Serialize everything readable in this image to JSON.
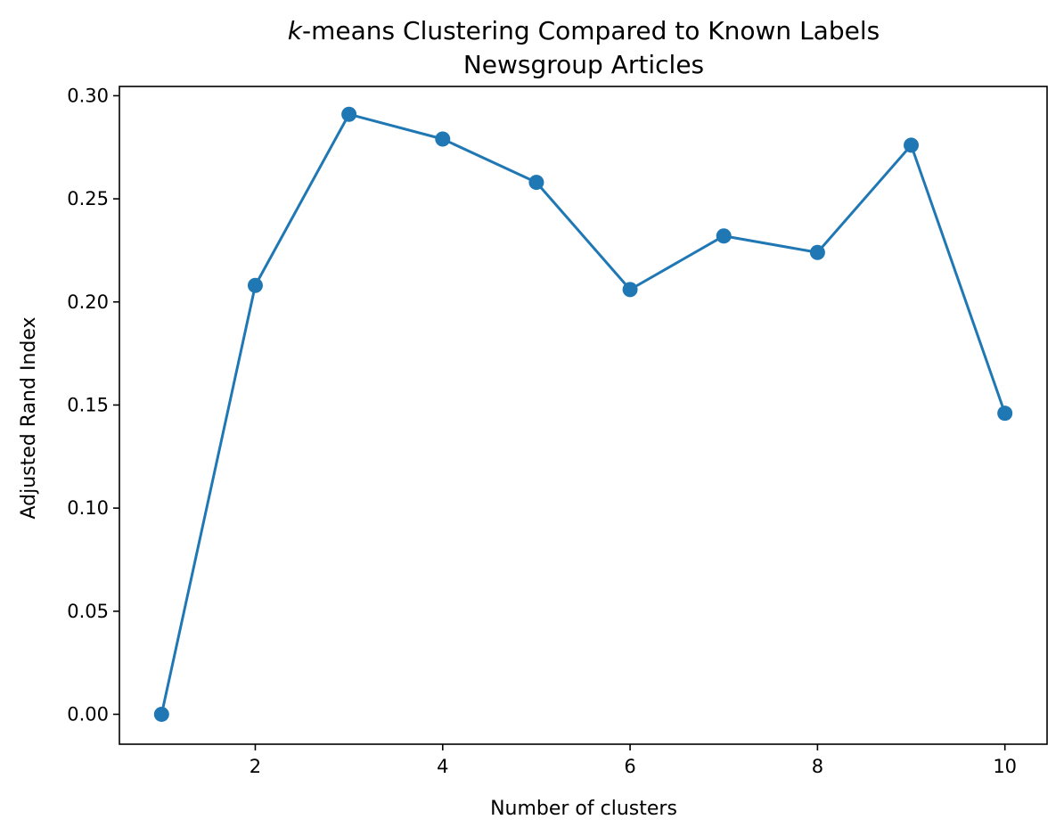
{
  "chart_data": {
    "type": "line",
    "title_italic_part": "k",
    "title_rest": "-means Clustering Compared to Known Labels",
    "subtitle": "Newsgroup Articles",
    "xlabel": "Number of clusters",
    "ylabel": "Adjusted Rand Index",
    "xlim": [
      0.55,
      10.45
    ],
    "ylim": [
      -0.0145,
      0.3045
    ],
    "x_ticks": [
      2,
      4,
      6,
      8,
      10
    ],
    "x_tick_labels": [
      "2",
      "4",
      "6",
      "8",
      "10"
    ],
    "y_ticks": [
      0.0,
      0.05,
      0.1,
      0.15,
      0.2,
      0.25,
      0.3
    ],
    "y_tick_labels": [
      "0.00",
      "0.05",
      "0.10",
      "0.15",
      "0.20",
      "0.25",
      "0.30"
    ],
    "grid": false,
    "series": [
      {
        "color": "#1f77b4",
        "marker": "circle",
        "x": [
          1,
          2,
          3,
          4,
          5,
          6,
          7,
          8,
          9,
          10
        ],
        "y": [
          0.0,
          0.208,
          0.291,
          0.279,
          0.258,
          0.206,
          0.232,
          0.224,
          0.276,
          0.146
        ]
      }
    ]
  }
}
